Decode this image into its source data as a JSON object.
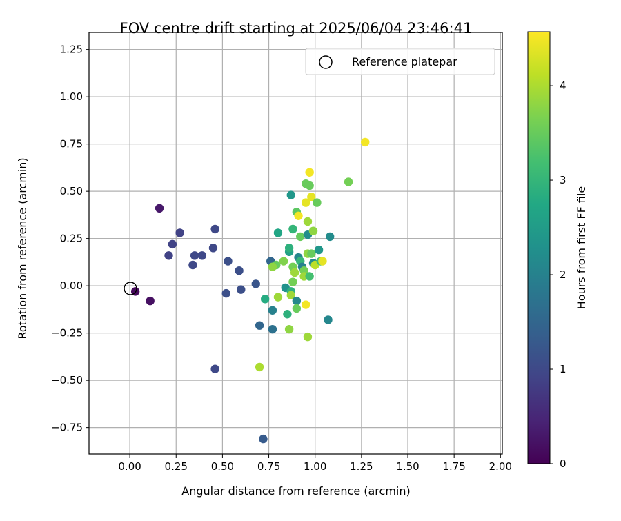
{
  "chart_data": {
    "type": "scatter",
    "title": "FOV centre drift starting at 2025/06/04 23:46:41",
    "xlabel": "Angular distance from reference (arcmin)",
    "ylabel": "Rotation from reference (arcmin)",
    "xlim": [
      -0.22,
      2.01
    ],
    "ylim": [
      -0.89,
      1.34
    ],
    "xticks": [
      "0.00",
      "0.25",
      "0.50",
      "0.75",
      "1.00",
      "1.25",
      "1.50",
      "1.75",
      "2.00"
    ],
    "yticks": [
      "−0.75",
      "−0.50",
      "−0.25",
      "0.00",
      "0.25",
      "0.50",
      "0.75",
      "1.00",
      "1.25"
    ],
    "grid": true,
    "legend": {
      "position": "top-right",
      "entries": [
        "Reference platepar"
      ]
    },
    "reference_point": {
      "x": 0.0,
      "y": 0.0
    },
    "colorbar": {
      "label": "Hours from first FF file",
      "range": [
        0,
        4.57
      ],
      "ticks": [
        "0",
        "1",
        "2",
        "3",
        "4"
      ],
      "colormap": "viridis"
    },
    "points": [
      {
        "x": 0.03,
        "y": -0.03,
        "c": 0.1
      },
      {
        "x": 0.11,
        "y": -0.08,
        "c": 0.2
      },
      {
        "x": 0.16,
        "y": 0.41,
        "c": 0.3
      },
      {
        "x": 0.21,
        "y": 0.16,
        "c": 0.9
      },
      {
        "x": 0.23,
        "y": 0.22,
        "c": 0.9
      },
      {
        "x": 0.27,
        "y": 0.28,
        "c": 0.9
      },
      {
        "x": 0.34,
        "y": 0.11,
        "c": 1.0
      },
      {
        "x": 0.35,
        "y": 0.16,
        "c": 1.0
      },
      {
        "x": 0.39,
        "y": 0.16,
        "c": 1.0
      },
      {
        "x": 0.45,
        "y": 0.2,
        "c": 1.0
      },
      {
        "x": 0.46,
        "y": 0.3,
        "c": 1.0
      },
      {
        "x": 0.46,
        "y": -0.44,
        "c": 1.0
      },
      {
        "x": 0.53,
        "y": 0.13,
        "c": 1.1
      },
      {
        "x": 0.52,
        "y": -0.04,
        "c": 1.1
      },
      {
        "x": 0.59,
        "y": 0.08,
        "c": 1.1
      },
      {
        "x": 0.6,
        "y": -0.02,
        "c": 1.1
      },
      {
        "x": 0.68,
        "y": 0.01,
        "c": 1.2
      },
      {
        "x": 0.7,
        "y": -0.21,
        "c": 1.5
      },
      {
        "x": 0.72,
        "y": -0.81,
        "c": 1.3
      },
      {
        "x": 0.73,
        "y": -0.07,
        "c": 2.8
      },
      {
        "x": 0.76,
        "y": 0.13,
        "c": 1.5
      },
      {
        "x": 0.77,
        "y": -0.23,
        "c": 1.7
      },
      {
        "x": 0.77,
        "y": -0.13,
        "c": 2.0
      },
      {
        "x": 0.8,
        "y": 0.28,
        "c": 2.7
      },
      {
        "x": 0.79,
        "y": 0.11,
        "c": 3.5
      },
      {
        "x": 0.77,
        "y": 0.1,
        "c": 3.8
      },
      {
        "x": 0.8,
        "y": -0.06,
        "c": 3.9
      },
      {
        "x": 0.83,
        "y": 0.13,
        "c": 3.7
      },
      {
        "x": 0.84,
        "y": -0.01,
        "c": 2.3
      },
      {
        "x": 0.85,
        "y": -0.15,
        "c": 2.9
      },
      {
        "x": 0.86,
        "y": -0.23,
        "c": 3.8
      },
      {
        "x": 0.87,
        "y": 0.48,
        "c": 2.4
      },
      {
        "x": 0.86,
        "y": 0.18,
        "c": 2.6
      },
      {
        "x": 0.86,
        "y": 0.2,
        "c": 2.9
      },
      {
        "x": 0.87,
        "y": -0.03,
        "c": 2.9
      },
      {
        "x": 0.87,
        "y": -0.05,
        "c": 3.9
      },
      {
        "x": 0.88,
        "y": 0.3,
        "c": 3.0
      },
      {
        "x": 0.88,
        "y": 0.1,
        "c": 3.6
      },
      {
        "x": 0.88,
        "y": 0.02,
        "c": 3.6
      },
      {
        "x": 0.89,
        "y": 0.07,
        "c": 3.9
      },
      {
        "x": 0.9,
        "y": 0.39,
        "c": 3.4
      },
      {
        "x": 0.9,
        "y": -0.08,
        "c": 2.1
      },
      {
        "x": 0.9,
        "y": -0.12,
        "c": 3.5
      },
      {
        "x": 0.91,
        "y": 0.15,
        "c": 2.1
      },
      {
        "x": 0.91,
        "y": 0.37,
        "c": 4.5
      },
      {
        "x": 0.92,
        "y": 0.26,
        "c": 3.5
      },
      {
        "x": 0.92,
        "y": 0.13,
        "c": 3.0
      },
      {
        "x": 0.93,
        "y": 0.1,
        "c": 2.0
      },
      {
        "x": 0.94,
        "y": 0.08,
        "c": 3.6
      },
      {
        "x": 0.94,
        "y": 0.05,
        "c": 3.9
      },
      {
        "x": 0.95,
        "y": 0.44,
        "c": 4.4
      },
      {
        "x": 0.95,
        "y": 0.54,
        "c": 3.5
      },
      {
        "x": 0.95,
        "y": -0.1,
        "c": 4.5
      },
      {
        "x": 0.96,
        "y": 0.27,
        "c": 2.2
      },
      {
        "x": 0.96,
        "y": 0.34,
        "c": 3.9
      },
      {
        "x": 0.96,
        "y": 0.17,
        "c": 3.8
      },
      {
        "x": 0.96,
        "y": -0.27,
        "c": 3.9
      },
      {
        "x": 0.97,
        "y": 0.6,
        "c": 4.5
      },
      {
        "x": 0.97,
        "y": 0.05,
        "c": 3.2
      },
      {
        "x": 0.97,
        "y": 0.53,
        "c": 3.5
      },
      {
        "x": 0.98,
        "y": 0.47,
        "c": 4.4
      },
      {
        "x": 0.98,
        "y": 0.17,
        "c": 3.5
      },
      {
        "x": 0.99,
        "y": 0.29,
        "c": 3.8
      },
      {
        "x": 0.99,
        "y": 0.12,
        "c": 2.2
      },
      {
        "x": 1.0,
        "y": 0.11,
        "c": 4.1
      },
      {
        "x": 1.01,
        "y": 0.44,
        "c": 3.5
      },
      {
        "x": 1.02,
        "y": 0.19,
        "c": 2.4
      },
      {
        "x": 1.03,
        "y": 0.13,
        "c": 3.2
      },
      {
        "x": 1.04,
        "y": 0.13,
        "c": 4.4
      },
      {
        "x": 1.07,
        "y": -0.18,
        "c": 2.1
      },
      {
        "x": 1.08,
        "y": 0.26,
        "c": 2.2
      },
      {
        "x": 1.18,
        "y": 0.55,
        "c": 3.6
      },
      {
        "x": 1.27,
        "y": 0.76,
        "c": 4.5
      },
      {
        "x": 0.7,
        "y": -0.43,
        "c": 4.0
      }
    ]
  }
}
